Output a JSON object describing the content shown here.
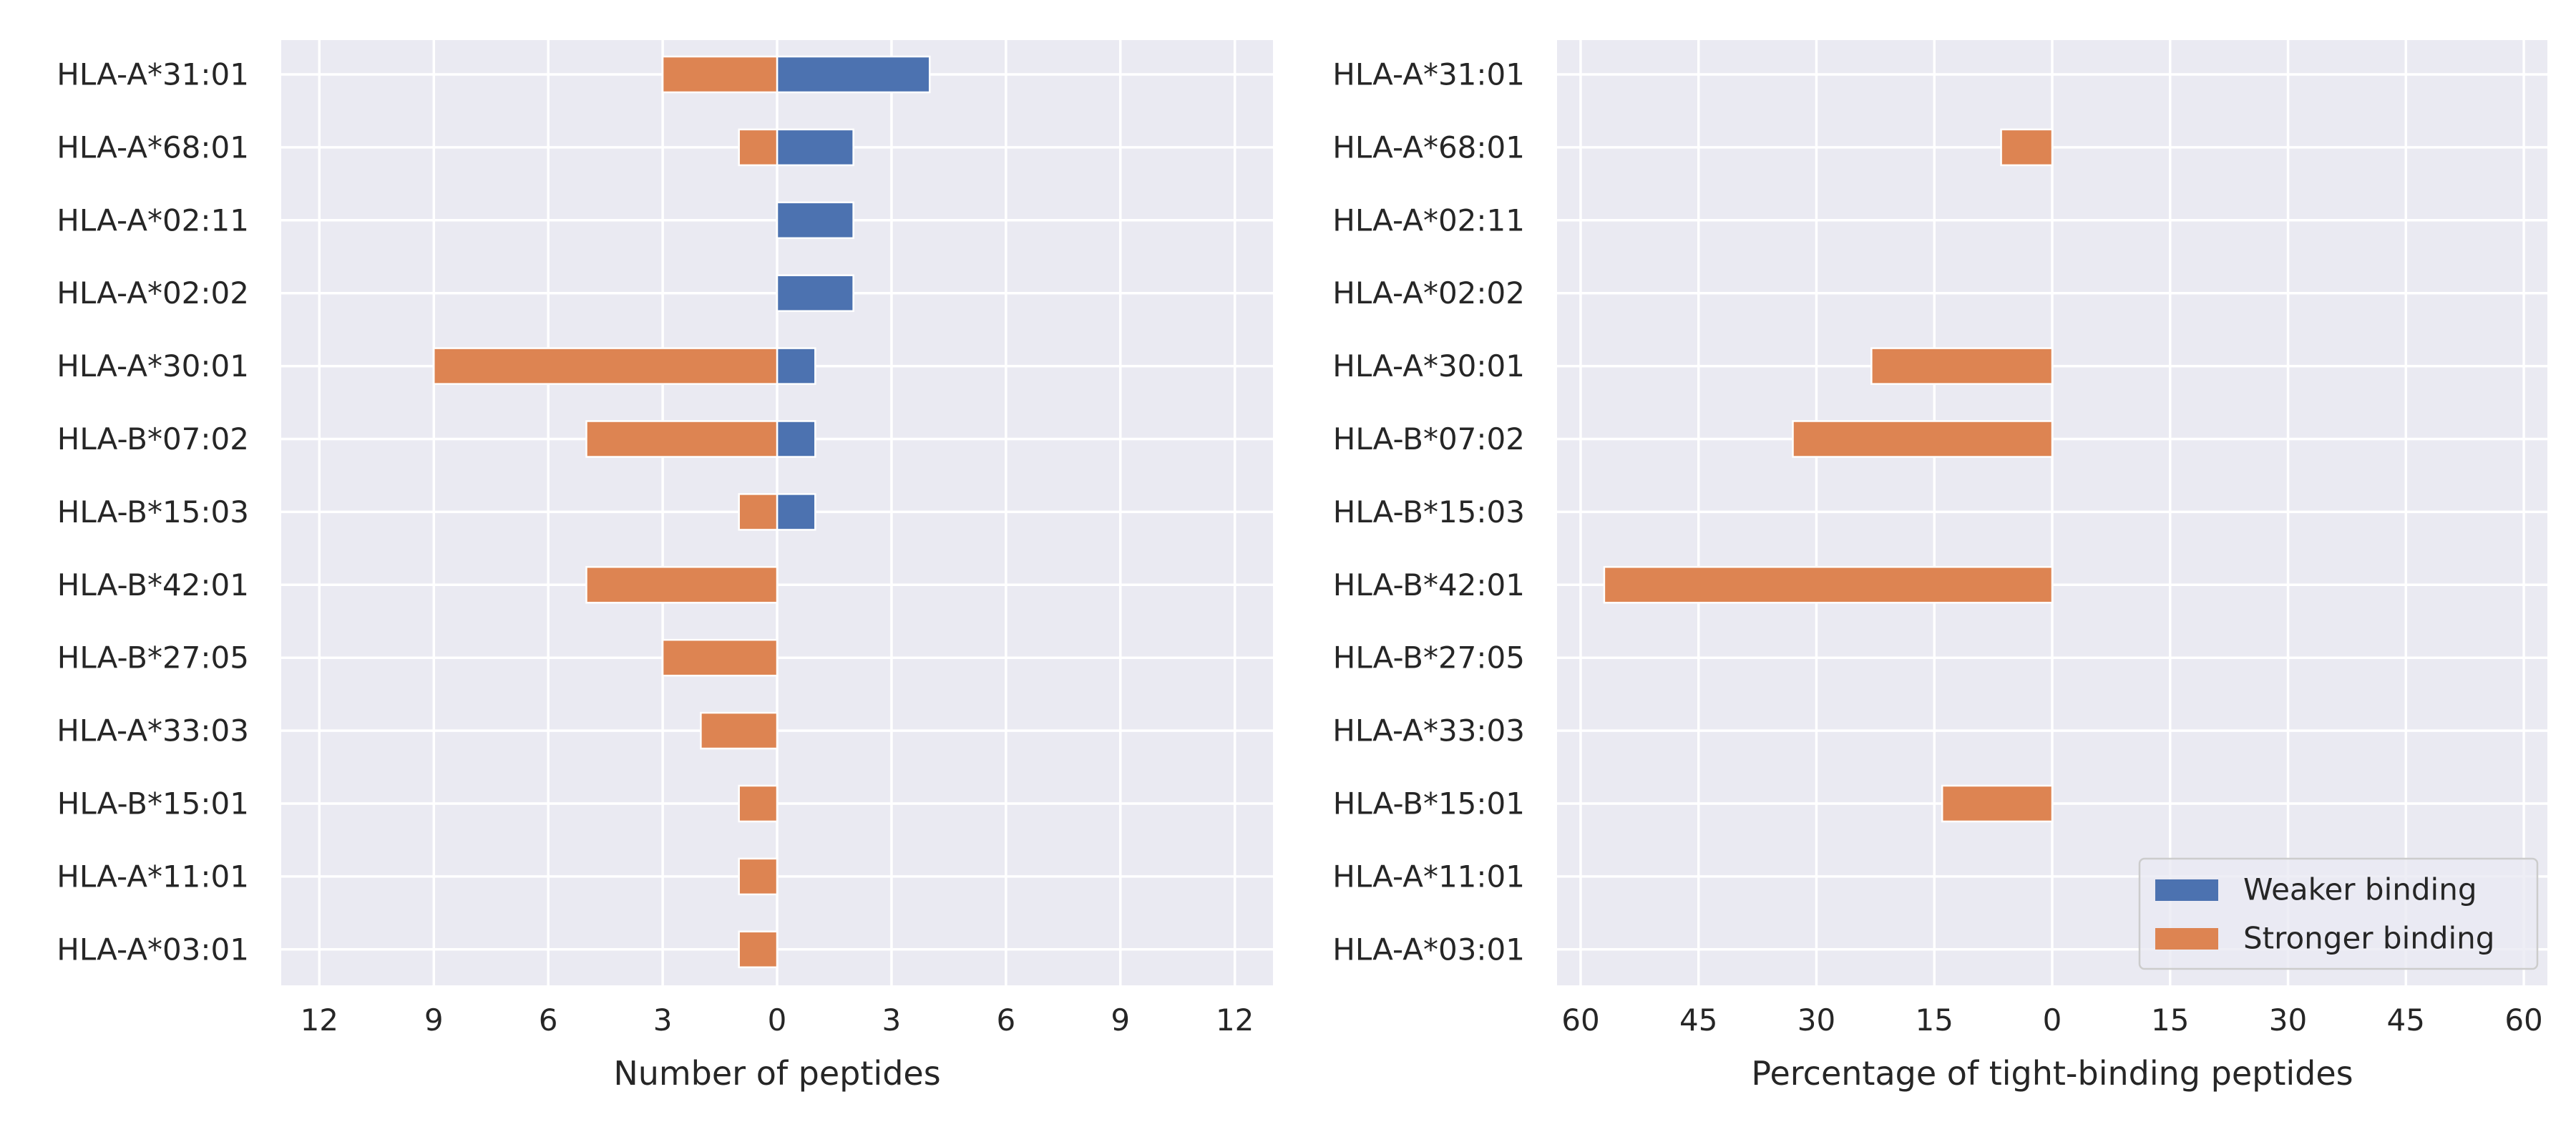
{
  "colors": {
    "weaker": "#4C72B0",
    "stronger": "#DD8452",
    "panel_bg": "#EAEAF2",
    "grid": "#FFFFFF",
    "text": "#262626"
  },
  "chart_data": [
    {
      "type": "bar",
      "orientation": "horizontal",
      "title": "",
      "xlabel": "Number of peptides",
      "ylabel": "",
      "xlim": [
        -13,
        13
      ],
      "xticks": [
        -12,
        -9,
        -6,
        -3,
        0,
        3,
        6,
        9,
        12
      ],
      "xtick_labels": [
        "12",
        "9",
        "6",
        "3",
        "0",
        "3",
        "6",
        "9",
        "12"
      ],
      "grid": true,
      "categories": [
        "HLA-A*31:01",
        "HLA-A*68:01",
        "HLA-A*02:11",
        "HLA-A*02:02",
        "HLA-A*30:01",
        "HLA-B*07:02",
        "HLA-B*15:03",
        "HLA-B*42:01",
        "HLA-B*27:05",
        "HLA-A*33:03",
        "HLA-B*15:01",
        "HLA-A*11:01",
        "HLA-A*03:01"
      ],
      "series": [
        {
          "name": "Weaker binding",
          "color_key": "weaker",
          "values": [
            4,
            2,
            2,
            2,
            1,
            1,
            1,
            0,
            0,
            0,
            0,
            0,
            0
          ]
        },
        {
          "name": "Stronger binding",
          "color_key": "stronger",
          "values": [
            -3,
            -1,
            0,
            0,
            -9,
            -5,
            -1,
            -5,
            -3,
            -2,
            -1,
            -1,
            -1
          ]
        }
      ]
    },
    {
      "type": "bar",
      "orientation": "horizontal",
      "title": "",
      "xlabel": "Percentage of tight-binding peptides",
      "ylabel": "",
      "xlim": [
        -63,
        63
      ],
      "xticks": [
        -60,
        -45,
        -30,
        -15,
        0,
        15,
        30,
        45,
        60
      ],
      "xtick_labels": [
        "60",
        "45",
        "30",
        "15",
        "0",
        "15",
        "30",
        "45",
        "60"
      ],
      "grid": true,
      "legend": {
        "placement": "lower-right",
        "entries": [
          "Weaker binding",
          "Stronger binding"
        ]
      },
      "categories": [
        "HLA-A*31:01",
        "HLA-A*68:01",
        "HLA-A*02:11",
        "HLA-A*02:02",
        "HLA-A*30:01",
        "HLA-B*07:02",
        "HLA-B*15:03",
        "HLA-B*42:01",
        "HLA-B*27:05",
        "HLA-A*33:03",
        "HLA-B*15:01",
        "HLA-A*11:01",
        "HLA-A*03:01"
      ],
      "series": [
        {
          "name": "Weaker binding",
          "color_key": "weaker",
          "values": [
            0,
            0,
            0,
            0,
            0,
            0,
            0,
            0,
            0,
            0,
            0,
            0,
            0
          ]
        },
        {
          "name": "Stronger binding",
          "color_key": "stronger",
          "values": [
            0,
            -6.5,
            0,
            0,
            -23,
            -33,
            0,
            -57,
            0,
            0,
            -14,
            0,
            0
          ]
        }
      ]
    }
  ]
}
